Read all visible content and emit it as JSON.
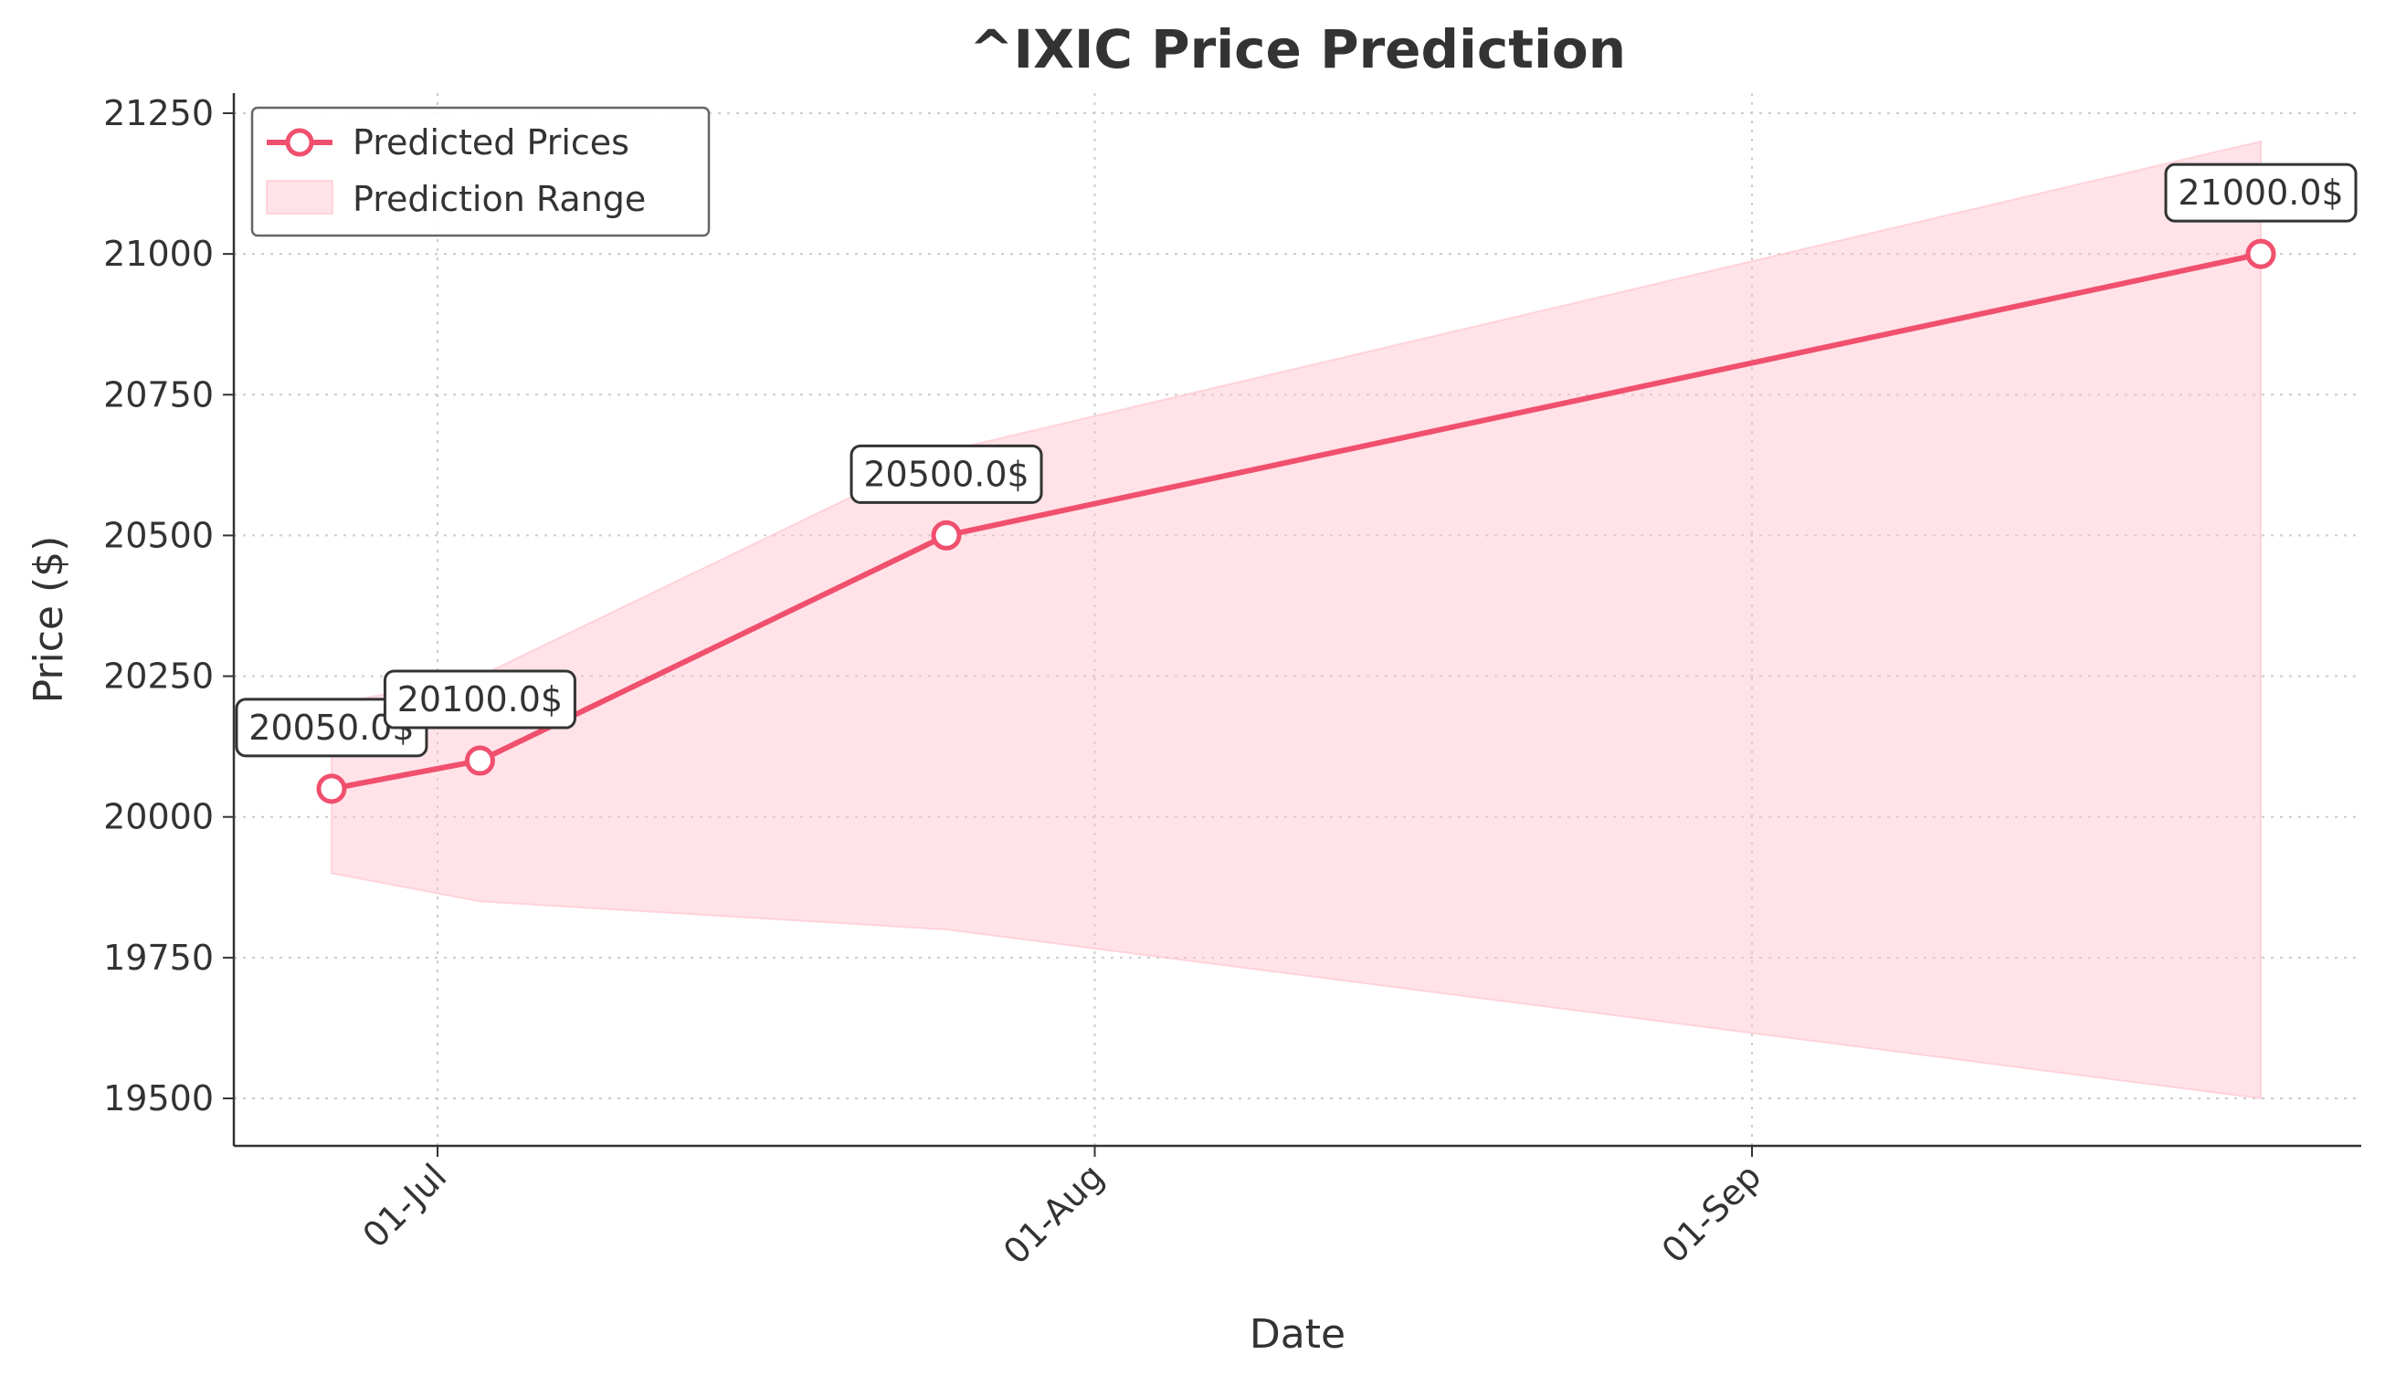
{
  "chart_data": {
    "type": "line",
    "title": "^IXIC Price Prediction",
    "xlabel": "Date",
    "ylabel": "Price ($)",
    "x_tick_labels": [
      "01-Jul",
      "01-Aug",
      "01-Sep"
    ],
    "y_ticks": [
      19500,
      19750,
      20000,
      20250,
      20500,
      20750,
      21000,
      21250
    ],
    "ylim": [
      19420,
      21280
    ],
    "grid": true,
    "legend": "top-left",
    "series": [
      {
        "name": "Predicted Prices",
        "color": "#f0506e",
        "points": [
          {
            "x": "2024-06-26",
            "y": 20050,
            "label": "20050.0$"
          },
          {
            "x": "2024-07-03",
            "y": 20100,
            "label": "20100.0$"
          },
          {
            "x": "2024-07-25",
            "y": 20500,
            "label": "20500.0$"
          },
          {
            "x": "2024-09-25",
            "y": 21000,
            "label": "21000.0$"
          }
        ]
      },
      {
        "name": "Prediction Range",
        "type": "area",
        "color": "#ffc0cb",
        "x": [
          "2024-06-26",
          "2024-07-03",
          "2024-07-25",
          "2024-09-25"
        ],
        "lower": [
          19900,
          19850,
          19800,
          19500
        ],
        "upper": [
          20200,
          20250,
          20650,
          21200
        ]
      }
    ]
  }
}
